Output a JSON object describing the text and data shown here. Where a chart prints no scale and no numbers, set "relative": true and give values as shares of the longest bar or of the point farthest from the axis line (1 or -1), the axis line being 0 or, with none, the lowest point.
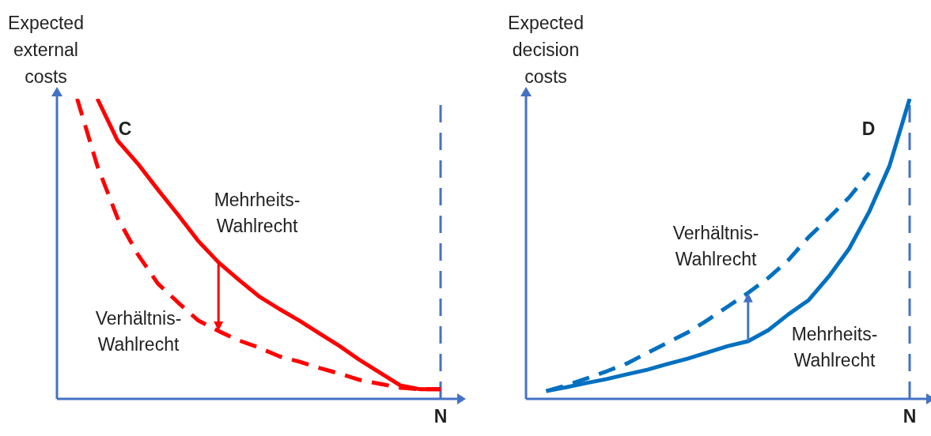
{
  "chart_data": [
    {
      "type": "line",
      "relative": true,
      "ylabel": "Expected external costs",
      "annotations": [
        "C"
      ],
      "categories": [
        null,
        null,
        null,
        null,
        null,
        null,
        null,
        null,
        null,
        null,
        null,
        null,
        null,
        null,
        null,
        null,
        null,
        null,
        null
      ],
      "ref_lines": [
        {
          "axis": "x",
          "value": "N",
          "color": "#4472c4",
          "line_style": "dashed"
        }
      ],
      "series": [
        {
          "name": "Mehrheits-Wahlrecht",
          "color": "#ff0000",
          "line_style": "solid",
          "values": [
            null,
            1,
            0.861,
            0.784,
            0.697,
            0.613,
            0.526,
            0.455,
            0.397,
            0.342,
            0.3,
            0.261,
            0.218,
            0.176,
            0.129,
            0.087,
            0.045,
            0.032,
            0.032
          ]
        },
        {
          "name": "Verhältnis-Wahlrecht",
          "color": "#ff0000",
          "line_style": "dashed",
          "values": [
            1,
            0.776,
            0.603,
            0.482,
            0.384,
            0.321,
            0.261,
            0.226,
            0.195,
            0.171,
            0.142,
            0.124,
            0.103,
            0.084,
            0.063,
            0.05,
            0.037,
            0.032,
            0.032
          ]
        }
      ]
    },
    {
      "type": "line",
      "relative": true,
      "ylabel": "Expected decision costs",
      "annotations": [
        "D"
      ],
      "categories": [
        null,
        null,
        null,
        null,
        null,
        null,
        null,
        null,
        null,
        null,
        null,
        null,
        null,
        null,
        null,
        null,
        null,
        null,
        null
      ],
      "ref_lines": [
        {
          "axis": "x",
          "value": "N",
          "color": "#4472c4",
          "line_style": "dashed"
        }
      ],
      "series": [
        {
          "name": "Mehrheits-Wahlrecht",
          "color": "#0070c0",
          "line_style": "solid",
          "values": [
            0.026,
            0.039,
            0.053,
            0.066,
            0.082,
            0.097,
            0.116,
            0.134,
            0.155,
            0.176,
            0.192,
            0.229,
            0.282,
            0.329,
            0.408,
            0.5,
            0.624,
            0.776,
            1
          ]
        },
        {
          "name": "Verhältnis-Wahlrecht",
          "color": "#0070c0",
          "line_style": "dashed",
          "values": [
            0.026,
            0.045,
            0.068,
            0.092,
            0.118,
            0.153,
            0.187,
            0.221,
            0.263,
            0.308,
            0.353,
            0.403,
            0.463,
            0.539,
            0.603,
            0.671,
            0.753,
            null,
            null
          ]
        }
      ]
    }
  ]
}
